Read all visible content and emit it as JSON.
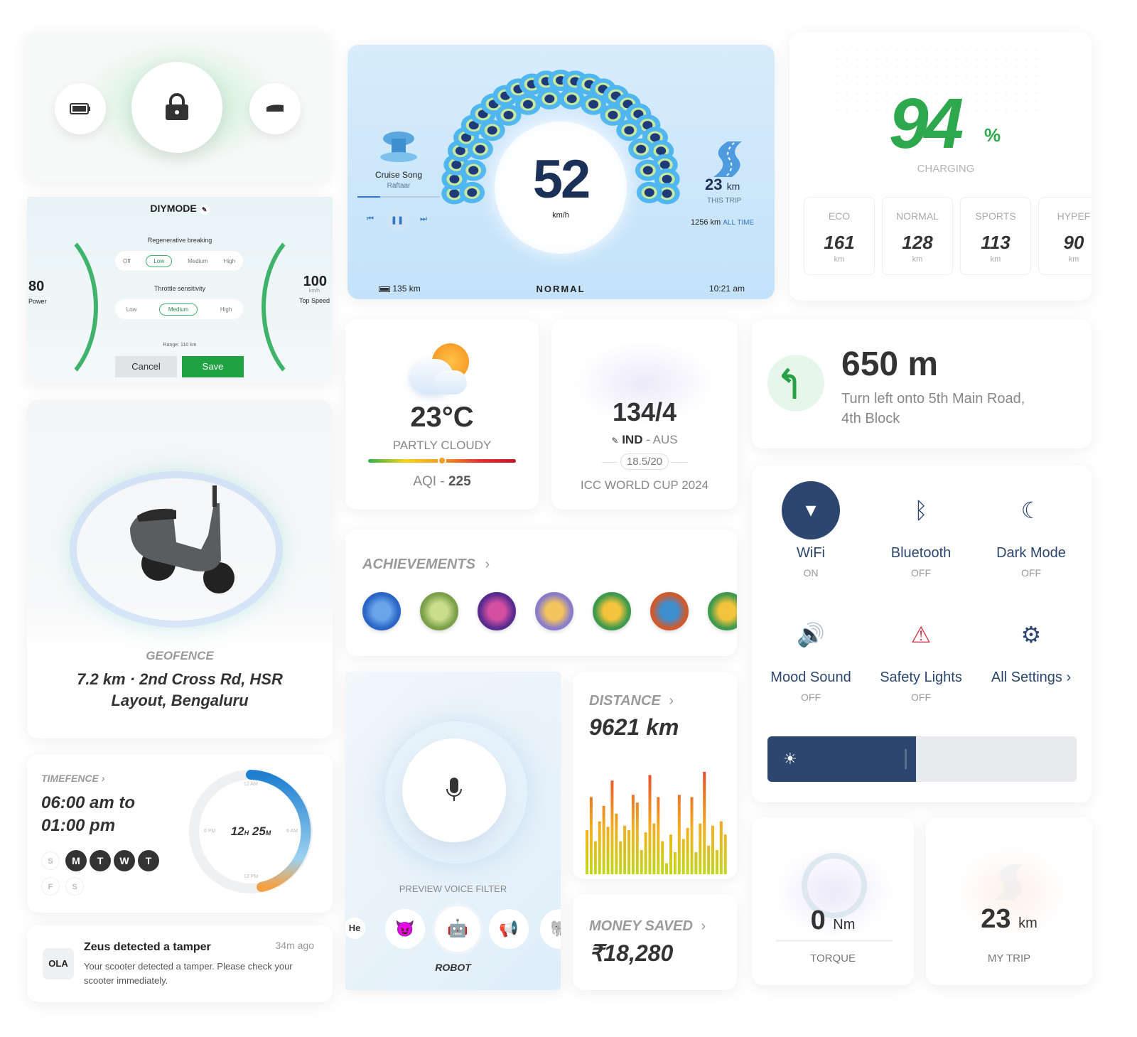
{
  "diy": {
    "title": "DIYMODE",
    "regen_label": "Regenerative breaking",
    "regen_opts": [
      "Off",
      "Low",
      "Medium",
      "High"
    ],
    "throttle_label": "Throttle sensitivity",
    "throttle_opts": [
      "Low",
      "Medium",
      "High"
    ],
    "range": "Range: 110 km",
    "cancel": "Cancel",
    "save": "Save",
    "power_val": "80",
    "power_label": "Power",
    "speed_val": "100",
    "speed_unit": "km/h",
    "speed_label": "Top Speed"
  },
  "dash": {
    "song_title": "Cruise Song",
    "song_artist": "Raftaar",
    "speed": "52",
    "speed_unit": "km/h",
    "trip_val": "23",
    "trip_unit": "km",
    "trip_label": "THIS TRIP",
    "alltime_val": "1256 km",
    "alltime_label": "ALL TIME",
    "range": "135 km",
    "mode": "NORMAL",
    "time": "10:21 am",
    "song_progress": 0.28
  },
  "charging": {
    "percent": "94",
    "percent_sign": "%",
    "label": "CHARGING",
    "modes": [
      {
        "name": "ECO",
        "val": "161",
        "unit": "km"
      },
      {
        "name": "NORMAL",
        "val": "128",
        "unit": "km"
      },
      {
        "name": "SPORTS",
        "val": "113",
        "unit": "km"
      },
      {
        "name": "HYPEF",
        "val": "90",
        "unit": "km"
      }
    ]
  },
  "weather": {
    "temp": "23°C",
    "desc": "PARTLY CLOUDY",
    "aqi_label": "AQI",
    "aqi_sep": " - ",
    "aqi_val": "225",
    "aqi_level": 0.5
  },
  "cricket": {
    "score": "134/4",
    "team1": "IND",
    "sep": " - ",
    "team2": "AUS",
    "overs": "18.5/20",
    "event": "ICC WORLD CUP 2024"
  },
  "nav": {
    "distance": "650 m",
    "instruction": "Turn left onto 5th Main Road, 4th Block"
  },
  "geofence": {
    "label": "GEOFENCE",
    "address": "7.2 km · 2nd Cross Rd, HSR Layout, Bengaluru"
  },
  "achievements": {
    "title": "ACHIEVEMENTS",
    "badges": [
      "badge-4",
      "badge-longest-ride",
      "badge-purple",
      "badge-referred-a-friend",
      "badge-2024-a",
      "badge-2024-b",
      "badge-2024-c"
    ]
  },
  "toggles": [
    {
      "name": "WiFi",
      "state": "ON",
      "icon": "wifi-icon",
      "active": true
    },
    {
      "name": "Bluetooth",
      "state": "OFF",
      "icon": "bluetooth-icon",
      "active": false
    },
    {
      "name": "Dark Mode",
      "state": "OFF",
      "icon": "moon-icon",
      "active": false
    },
    {
      "name": "Mood Sound",
      "state": "OFF",
      "icon": "speaker-icon",
      "active": false
    },
    {
      "name": "Safety Lights",
      "state": "OFF",
      "icon": "hazard-icon",
      "active": false
    },
    {
      "name": "All Settings",
      "state": "",
      "icon": "gear-icon",
      "active": false
    }
  ],
  "brightness": {
    "level": 0.48
  },
  "timefence": {
    "label": "TIMEFENCE",
    "time_range": "06:00 am to 01:00 pm",
    "hours": "12",
    "h": "H",
    "mins": "25",
    "m": "M",
    "clock_marks": [
      "12 AM",
      "6 AM",
      "12 PM",
      "6 PM"
    ],
    "days": [
      {
        "d": "S",
        "on": false
      },
      {
        "d": "M",
        "on": true
      },
      {
        "d": "T",
        "on": true
      },
      {
        "d": "W",
        "on": true
      },
      {
        "d": "T",
        "on": true
      },
      {
        "d": "F",
        "on": false
      },
      {
        "d": "S",
        "on": false
      }
    ]
  },
  "voice": {
    "label": "PREVIEW VOICE FILTER",
    "selected": "ROBOT",
    "filters": [
      "He",
      "devil",
      "robot",
      "megaphone",
      "other"
    ]
  },
  "distance": {
    "label": "DISTANCE",
    "value": "9621 km",
    "bars": [
      40,
      70,
      30,
      48,
      62,
      43,
      85,
      55,
      30,
      44,
      40,
      72,
      65,
      22,
      38,
      90,
      46,
      70,
      30,
      10,
      36,
      20,
      72,
      32,
      42,
      70,
      20,
      46,
      93,
      26,
      44,
      22,
      48,
      36
    ]
  },
  "money": {
    "label": "MONEY SAVED",
    "value": "₹18,280"
  },
  "torque": {
    "val": "0",
    "unit": "Nm",
    "label": "TORQUE"
  },
  "mytrip": {
    "val": "23",
    "unit": "km",
    "label": "MY TRIP"
  },
  "notif": {
    "title": "Zeus detected a tamper",
    "time": "34m ago",
    "body": "Your scooter detected a tamper. Please check your scooter immediately.",
    "logo": "OLA"
  },
  "colors": {
    "navy": "#1c3157",
    "green": "#1fa342",
    "accent_blue": "#1e7fd0",
    "orange": "#f5a041"
  }
}
